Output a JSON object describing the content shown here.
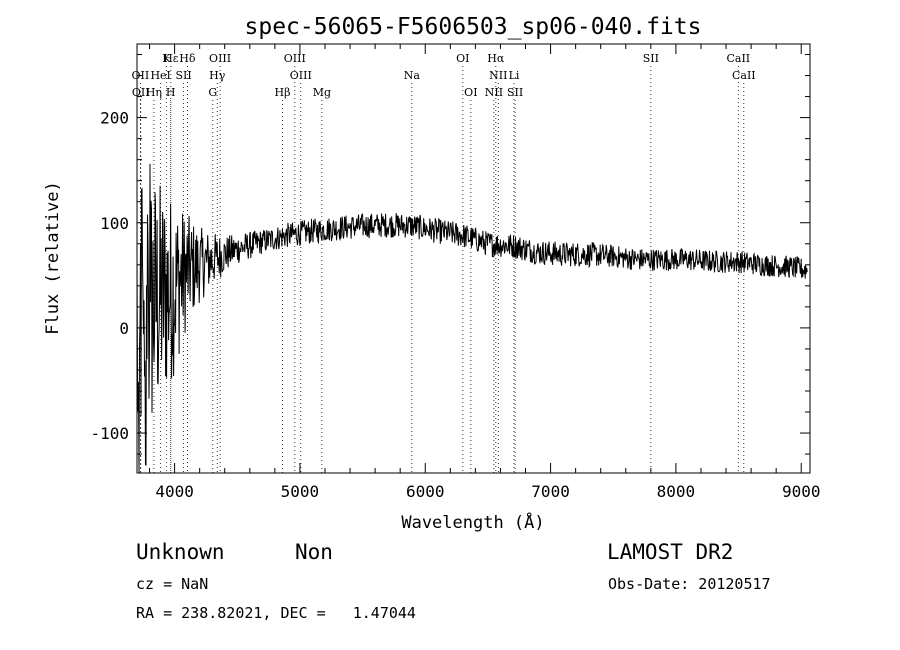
{
  "chart_data": {
    "type": "line",
    "title": "spec-56065-F5606503_sp06-040.fits",
    "xlabel": "Wavelength (Å)",
    "ylabel": "Flux (relative)",
    "xlim": [
      3700,
      9070
    ],
    "ylim": [
      -138,
      270
    ],
    "x_ticks": [
      4000,
      5000,
      6000,
      7000,
      8000,
      9000
    ],
    "y_ticks": [
      -100,
      0,
      100,
      200
    ],
    "grid": false,
    "series": [
      {
        "color": "#000000",
        "x": [
          3700,
          3800,
          3900,
          4000,
          4100,
          4200,
          4300,
          4400,
          4500,
          4700,
          4900,
          5100,
          5300,
          5500,
          5700,
          5900,
          6100,
          6300,
          6500,
          6700,
          6900,
          7100,
          7300,
          7500,
          7700,
          7900,
          8100,
          8300,
          8500,
          8700,
          8900,
          9050
        ],
        "values": [
          -20,
          20,
          30,
          40,
          55,
          60,
          65,
          70,
          75,
          82,
          88,
          92,
          95,
          97,
          98,
          97,
          92,
          88,
          80,
          78,
          72,
          70,
          70,
          68,
          65,
          65,
          65,
          63,
          63,
          60,
          58,
          55
        ],
        "noise": [
          120,
          115,
          90,
          70,
          45,
          30,
          22,
          15,
          12,
          10,
          10,
          10,
          10,
          10,
          10,
          10,
          10,
          10,
          10,
          10,
          10,
          10,
          10,
          9,
          9,
          9,
          9,
          9,
          9,
          9,
          9,
          9
        ]
      }
    ],
    "line_markers": [
      {
        "label": "Hε",
        "wavelength": 3970,
        "row": 1
      },
      {
        "label": "K",
        "wavelength": 3934,
        "row": 1
      },
      {
        "label": "Hδ",
        "wavelength": 4102,
        "row": 1
      },
      {
        "label": "OIII",
        "wavelength": 4363,
        "row": 1
      },
      {
        "label": "OIII",
        "wavelength": 4959,
        "row": 1
      },
      {
        "label": "OI",
        "wavelength": 6300,
        "row": 1
      },
      {
        "label": "Hα",
        "wavelength": 6563,
        "row": 1
      },
      {
        "label": "SII",
        "wavelength": 7800,
        "row": 1
      },
      {
        "label": "CaII",
        "wavelength": 8498,
        "row": 1
      },
      {
        "label": "OII",
        "wavelength": 3727,
        "row": 2
      },
      {
        "label": "HeI",
        "wavelength": 3889,
        "row": 2
      },
      {
        "label": "SII",
        "wavelength": 4072,
        "row": 2
      },
      {
        "label": "Hγ",
        "wavelength": 4340,
        "row": 2
      },
      {
        "label": "OIII",
        "wavelength": 5007,
        "row": 2
      },
      {
        "label": "Na",
        "wavelength": 5893,
        "row": 2
      },
      {
        "label": "NII",
        "wavelength": 6583,
        "row": 2
      },
      {
        "label": "Li",
        "wavelength": 6708,
        "row": 2
      },
      {
        "label": "CaII",
        "wavelength": 8542,
        "row": 2
      },
      {
        "label": "OII",
        "wavelength": 3730,
        "row": 3
      },
      {
        "label": "Hη",
        "wavelength": 3835,
        "row": 3
      },
      {
        "label": "H",
        "wavelength": 3969,
        "row": 3
      },
      {
        "label": "G",
        "wavelength": 4305,
        "row": 3
      },
      {
        "label": "Hβ",
        "wavelength": 4861,
        "row": 3
      },
      {
        "label": "Mg",
        "wavelength": 5175,
        "row": 3
      },
      {
        "label": "OI",
        "wavelength": 6364,
        "row": 3
      },
      {
        "label": "NII",
        "wavelength": 6548,
        "row": 3
      },
      {
        "label": "SII",
        "wavelength": 6717,
        "row": 3
      }
    ]
  },
  "info": {
    "class_label": "Unknown",
    "subclass_label": "Non",
    "survey": "LAMOST DR2",
    "redshift": "cz = NaN",
    "obs_date": "Obs-Date: 20120517",
    "coords": "RA = 238.82021, DEC =   1.47044"
  }
}
